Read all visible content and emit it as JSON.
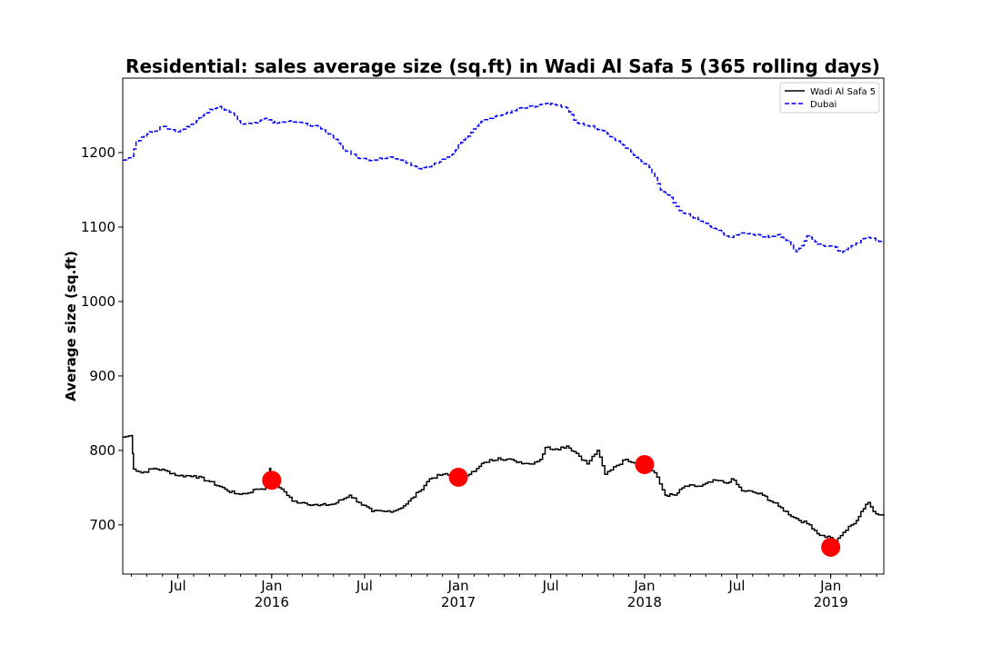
{
  "chart_data": {
    "type": "line",
    "title": "Residential: sales average size (sq.ft) in Wadi Al Safa 5 (365 rolling days)",
    "xlabel": "",
    "ylabel": "Average size (sq.ft)",
    "x_range": [
      "2015-03-15",
      "2019-04-15"
    ],
    "ylim": [
      634,
      1300
    ],
    "y_ticks": [
      700,
      800,
      900,
      1000,
      1100,
      1200
    ],
    "x_ticks": [
      {
        "date": "2015-07-01",
        "label": "Jul",
        "year": ""
      },
      {
        "date": "2016-01-01",
        "label": "Jan",
        "year": "2016"
      },
      {
        "date": "2016-07-01",
        "label": "Jul",
        "year": ""
      },
      {
        "date": "2017-01-01",
        "label": "Jan",
        "year": "2017"
      },
      {
        "date": "2017-07-01",
        "label": "Jul",
        "year": ""
      },
      {
        "date": "2018-01-01",
        "label": "Jan",
        "year": "2018"
      },
      {
        "date": "2018-07-01",
        "label": "Jul",
        "year": ""
      },
      {
        "date": "2019-01-01",
        "label": "Jan",
        "year": "2019"
      }
    ],
    "legend_placement": "top-right",
    "grid": false,
    "series": [
      {
        "name": "Wadi Al Safa 5",
        "color": "#000000",
        "style": "solid",
        "points": [
          [
            "2015-03-15",
            818
          ],
          [
            "2015-04-01",
            820
          ],
          [
            "2015-04-05",
            775
          ],
          [
            "2015-04-20",
            770
          ],
          [
            "2015-05-15",
            776
          ],
          [
            "2015-06-10",
            772
          ],
          [
            "2015-07-01",
            766
          ],
          [
            "2015-08-01",
            766
          ],
          [
            "2015-09-01",
            758
          ],
          [
            "2015-10-01",
            748
          ],
          [
            "2015-10-20",
            742
          ],
          [
            "2015-11-10",
            742
          ],
          [
            "2015-12-01",
            748
          ],
          [
            "2015-12-20",
            750
          ],
          [
            "2015-12-28",
            776
          ],
          [
            "2016-01-01",
            760
          ],
          [
            "2016-01-20",
            748
          ],
          [
            "2016-02-10",
            732
          ],
          [
            "2016-03-01",
            730
          ],
          [
            "2016-04-01",
            726
          ],
          [
            "2016-05-01",
            728
          ],
          [
            "2016-06-01",
            740
          ],
          [
            "2016-06-20",
            730
          ],
          [
            "2016-07-15",
            718
          ],
          [
            "2016-08-10",
            718
          ],
          [
            "2016-09-01",
            720
          ],
          [
            "2016-09-20",
            728
          ],
          [
            "2016-10-15",
            745
          ],
          [
            "2016-11-05",
            762
          ],
          [
            "2016-12-01",
            768
          ],
          [
            "2017-01-01",
            764
          ],
          [
            "2017-02-01",
            772
          ],
          [
            "2017-02-20",
            784
          ],
          [
            "2017-03-20",
            790
          ],
          [
            "2017-04-20",
            786
          ],
          [
            "2017-05-20",
            782
          ],
          [
            "2017-06-10",
            788
          ],
          [
            "2017-06-20",
            804
          ],
          [
            "2017-07-10",
            802
          ],
          [
            "2017-08-01",
            806
          ],
          [
            "2017-08-20",
            796
          ],
          [
            "2017-09-10",
            782
          ],
          [
            "2017-09-30",
            800
          ],
          [
            "2017-10-15",
            768
          ],
          [
            "2017-11-01",
            778
          ],
          [
            "2017-11-25",
            788
          ],
          [
            "2018-01-01",
            780
          ],
          [
            "2018-01-20",
            770
          ],
          [
            "2018-02-10",
            740
          ],
          [
            "2018-03-01",
            740
          ],
          [
            "2018-03-20",
            752
          ],
          [
            "2018-04-20",
            752
          ],
          [
            "2018-05-20",
            760
          ],
          [
            "2018-06-10",
            756
          ],
          [
            "2018-06-20",
            762
          ],
          [
            "2018-07-10",
            746
          ],
          [
            "2018-08-01",
            744
          ],
          [
            "2018-08-20",
            740
          ],
          [
            "2018-09-20",
            725
          ],
          [
            "2018-10-20",
            710
          ],
          [
            "2018-11-20",
            700
          ],
          [
            "2018-12-10",
            686
          ],
          [
            "2018-12-31",
            683
          ],
          [
            "2019-01-10",
            676
          ],
          [
            "2019-01-25",
            690
          ],
          [
            "2019-02-10",
            700
          ],
          [
            "2019-02-20",
            706
          ],
          [
            "2019-03-01",
            718
          ],
          [
            "2019-03-15",
            730
          ],
          [
            "2019-03-25",
            718
          ],
          [
            "2019-04-15",
            712
          ]
        ]
      },
      {
        "name": "Dubai",
        "color": "#0000ff",
        "style": "dashed",
        "points": [
          [
            "2015-03-15",
            1190
          ],
          [
            "2015-04-01",
            1195
          ],
          [
            "2015-04-10",
            1215
          ],
          [
            "2015-05-01",
            1225
          ],
          [
            "2015-06-01",
            1235
          ],
          [
            "2015-07-01",
            1228
          ],
          [
            "2015-08-01",
            1240
          ],
          [
            "2015-09-01",
            1258
          ],
          [
            "2015-09-20",
            1262
          ],
          [
            "2015-10-20",
            1250
          ],
          [
            "2015-11-01",
            1238
          ],
          [
            "2015-12-01",
            1240
          ],
          [
            "2015-12-20",
            1246
          ],
          [
            "2016-01-01",
            1240
          ],
          [
            "2016-02-01",
            1242
          ],
          [
            "2016-03-01",
            1240
          ],
          [
            "2016-04-01",
            1234
          ],
          [
            "2016-05-01",
            1220
          ],
          [
            "2016-05-20",
            1205
          ],
          [
            "2016-06-20",
            1192
          ],
          [
            "2016-07-20",
            1190
          ],
          [
            "2016-08-20",
            1194
          ],
          [
            "2016-09-20",
            1186
          ],
          [
            "2016-10-20",
            1178
          ],
          [
            "2016-11-20",
            1186
          ],
          [
            "2016-12-20",
            1198
          ],
          [
            "2017-01-01",
            1210
          ],
          [
            "2017-01-20",
            1222
          ],
          [
            "2017-02-10",
            1240
          ],
          [
            "2017-03-01",
            1246
          ],
          [
            "2017-04-01",
            1252
          ],
          [
            "2017-05-01",
            1260
          ],
          [
            "2017-06-01",
            1262
          ],
          [
            "2017-07-01",
            1266
          ],
          [
            "2017-08-01",
            1260
          ],
          [
            "2017-08-20",
            1240
          ],
          [
            "2017-09-20",
            1236
          ],
          [
            "2017-10-20",
            1225
          ],
          [
            "2017-11-20",
            1210
          ],
          [
            "2017-12-20",
            1192
          ],
          [
            "2018-01-10",
            1180
          ],
          [
            "2018-02-01",
            1150
          ],
          [
            "2018-02-20",
            1140
          ],
          [
            "2018-03-10",
            1122
          ],
          [
            "2018-04-01",
            1115
          ],
          [
            "2018-05-01",
            1105
          ],
          [
            "2018-06-01",
            1092
          ],
          [
            "2018-06-20",
            1086
          ],
          [
            "2018-07-10",
            1092
          ],
          [
            "2018-08-10",
            1090
          ],
          [
            "2018-09-01",
            1086
          ],
          [
            "2018-09-20",
            1090
          ],
          [
            "2018-10-10",
            1080
          ],
          [
            "2018-10-25",
            1067
          ],
          [
            "2018-11-05",
            1075
          ],
          [
            "2018-11-15",
            1088
          ],
          [
            "2018-12-01",
            1080
          ],
          [
            "2018-12-20",
            1074
          ],
          [
            "2019-01-10",
            1073
          ],
          [
            "2019-01-20",
            1066
          ],
          [
            "2019-02-10",
            1075
          ],
          [
            "2019-03-01",
            1082
          ],
          [
            "2019-03-15",
            1086
          ],
          [
            "2019-04-15",
            1079
          ]
        ]
      }
    ],
    "markers": {
      "color": "#ff0000",
      "points": [
        [
          "2016-01-01",
          760
        ],
        [
          "2017-01-01",
          764
        ],
        [
          "2018-01-01",
          781
        ],
        [
          "2019-01-01",
          670
        ]
      ]
    }
  }
}
